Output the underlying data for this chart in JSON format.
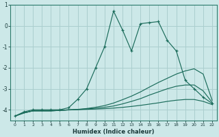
{
  "xlabel": "Humidex (Indice chaleur)",
  "background_color": "#cce8e8",
  "grid_color": "#aacece",
  "line_color": "#1a6b5a",
  "main_y": [
    -4.3,
    -4.1,
    -4.0,
    -4.0,
    -4.0,
    -4.0,
    -3.9,
    -3.5,
    -3.0,
    -2.0,
    -1.0,
    0.7,
    -0.2,
    -1.2,
    0.1,
    0.15,
    0.2,
    -0.7,
    -1.2,
    -2.6,
    -3.0,
    -3.4,
    -3.7
  ],
  "smooth1_y": [
    -4.3,
    -4.15,
    -4.05,
    -4.05,
    -4.05,
    -4.03,
    -4.0,
    -3.98,
    -3.94,
    -3.88,
    -3.8,
    -3.68,
    -3.52,
    -3.35,
    -3.15,
    -2.92,
    -2.7,
    -2.5,
    -2.3,
    -2.15,
    -2.05,
    -2.3,
    -3.55
  ],
  "smooth2_y": [
    -4.3,
    -4.15,
    -4.05,
    -4.05,
    -4.05,
    -4.03,
    -4.0,
    -3.99,
    -3.96,
    -3.93,
    -3.88,
    -3.82,
    -3.72,
    -3.6,
    -3.47,
    -3.3,
    -3.15,
    -3.0,
    -2.88,
    -2.82,
    -2.82,
    -3.1,
    -3.65
  ],
  "smooth3_y": [
    -4.3,
    -4.15,
    -4.05,
    -4.05,
    -4.05,
    -4.03,
    -4.01,
    -3.995,
    -3.98,
    -3.965,
    -3.945,
    -3.92,
    -3.885,
    -3.84,
    -3.79,
    -3.73,
    -3.67,
    -3.6,
    -3.545,
    -3.51,
    -3.51,
    -3.6,
    -3.75
  ],
  "ylim": [
    -4.5,
    1.0
  ],
  "xlim": [
    -0.5,
    22.5
  ],
  "yticks": [
    1,
    0,
    -1,
    -2,
    -3,
    -4
  ],
  "xticks": [
    0,
    1,
    2,
    3,
    4,
    5,
    6,
    7,
    8,
    9,
    10,
    11,
    12,
    13,
    14,
    15,
    16,
    17,
    18,
    19,
    20,
    21,
    22
  ]
}
